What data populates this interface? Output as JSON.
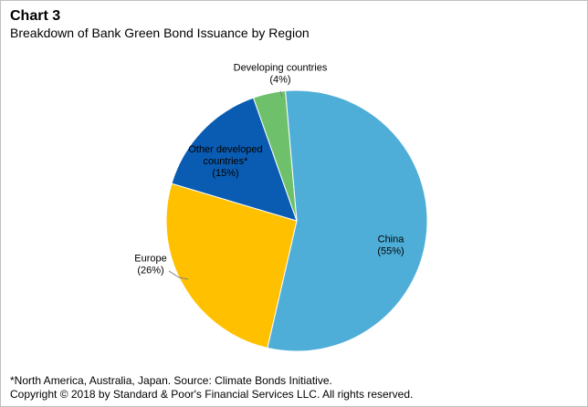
{
  "title": "Chart 3",
  "subtitle": "Breakdown of Bank Green Bond Issuance by Region",
  "footnote": "*North America, Australia, Japan. Source: Climate Bonds Initiative.",
  "copyright": "Copyright © 2018 by Standard & Poor's Financial Services LLC. All rights reserved.",
  "chart_data": {
    "type": "pie",
    "slices": [
      {
        "label_lines": [
          "China",
          "(55%)"
        ],
        "value": 55,
        "color": "#4eaed8"
      },
      {
        "label_lines": [
          "Europe",
          "(26%)"
        ],
        "value": 26,
        "color": "#ffc000"
      },
      {
        "label_lines": [
          "Other developed",
          "countries*",
          "(15%)"
        ],
        "value": 15,
        "color": "#0a5cb2"
      },
      {
        "label_lines": [
          "Developing countries",
          "(4%)"
        ],
        "value": 4,
        "color": "#6fc06a"
      }
    ],
    "legend": "none"
  }
}
